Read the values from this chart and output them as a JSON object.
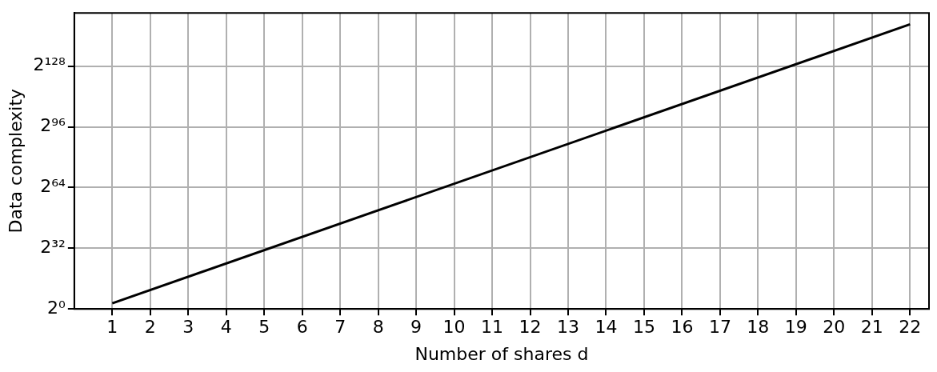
{
  "chart_data": {
    "type": "line",
    "xlabel": "Number of shares d",
    "ylabel": "Data complexity",
    "x": [
      1,
      22
    ],
    "series": [
      {
        "color": "#000000",
        "values": [
          8,
          1.42724769270596e+45
        ]
      }
    ],
    "log": "y",
    "grid": true,
    "legend": false,
    "marker": "none",
    "line_style": "solid",
    "xlim": [
      0,
      22.5
    ],
    "xticks": [
      1,
      2,
      3,
      4,
      5,
      6,
      7,
      8,
      9,
      10,
      11,
      12,
      13,
      14,
      15,
      16,
      17,
      18,
      19,
      20,
      21,
      22
    ],
    "ylim": [
      1,
      9.134385233318143e+46
    ],
    "yticks": [
      {
        "value": 1,
        "label": "2⁰"
      },
      {
        "value": 4294967296,
        "label": "2³²"
      },
      {
        "value": 18446744073709551616,
        "label": "2⁶⁴"
      },
      {
        "value": 7.922816251426434e+28,
        "label": "2⁹⁶"
      },
      {
        "value": 3.402823669209385e+38,
        "label": "2¹²⁸"
      }
    ]
  }
}
